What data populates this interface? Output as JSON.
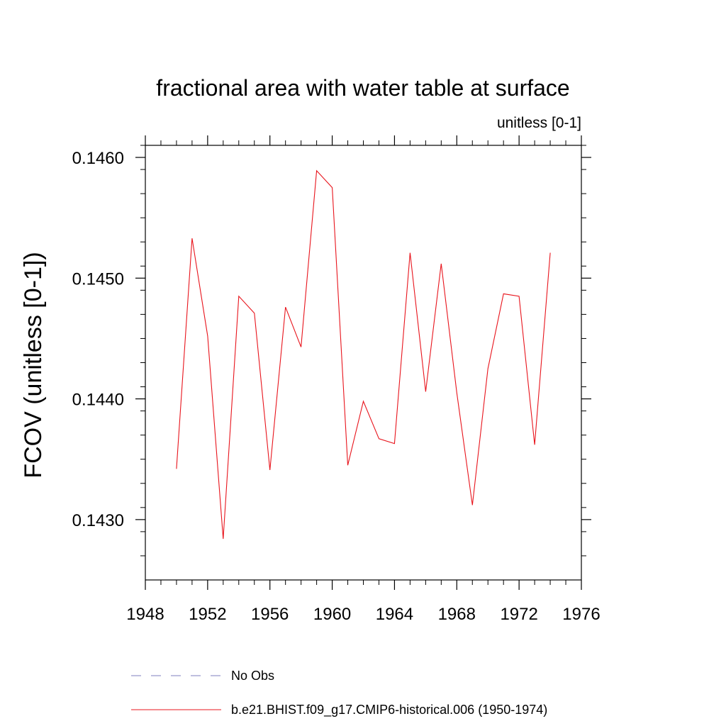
{
  "chart_data": {
    "type": "line",
    "title": "fractional area with water table at surface",
    "subtitle": "unitless [0-1]",
    "xlabel": "",
    "ylabel": "FCOV  (unitless [0-1])",
    "xlim": [
      1948,
      1976
    ],
    "ylim": [
      0.1425,
      0.1461
    ],
    "x_ticks": [
      1948,
      1952,
      1956,
      1960,
      1964,
      1968,
      1972,
      1976
    ],
    "x_tick_labels": [
      "1948",
      "1952",
      "1956",
      "1960",
      "1964",
      "1968",
      "1972",
      "1976"
    ],
    "y_ticks": [
      0.143,
      0.144,
      0.145,
      0.146
    ],
    "y_tick_labels": [
      "0.1430",
      "0.1440",
      "0.1450",
      "0.1460"
    ],
    "grid": false,
    "series": [
      {
        "name": "b.e21.BHIST.f09_g17.CMIP6-historical.006 (1950-1974)",
        "color": "#e8141c",
        "style": "solid",
        "x": [
          1950,
          1951,
          1952,
          1953,
          1954,
          1955,
          1956,
          1957,
          1958,
          1959,
          1960,
          1961,
          1962,
          1963,
          1964,
          1965,
          1966,
          1967,
          1968,
          1969,
          1970,
          1971,
          1972,
          1973,
          1974
        ],
        "values": [
          0.14342,
          0.14533,
          0.14452,
          0.14284,
          0.14485,
          0.14471,
          0.14341,
          0.14476,
          0.14443,
          0.14589,
          0.14575,
          0.14345,
          0.14398,
          0.14367,
          0.14363,
          0.14521,
          0.14406,
          0.14512,
          0.14405,
          0.14312,
          0.14425,
          0.14487,
          0.14485,
          0.14362,
          0.14521
        ]
      }
    ],
    "legend": [
      {
        "label": "No Obs",
        "color": "#7f7fbf",
        "style": "dashed"
      },
      {
        "label": "b.e21.BHIST.f09_g17.CMIP6-historical.006 (1950-1974)",
        "color": "#e8141c",
        "style": "solid"
      }
    ],
    "legend_position": "bottom"
  }
}
